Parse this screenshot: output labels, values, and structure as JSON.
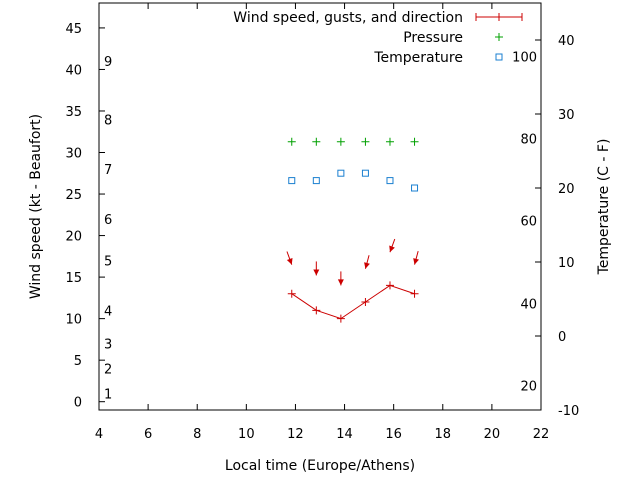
{
  "chart_data": {
    "type": "line",
    "title": "",
    "xlabel": "Local time (Europe/Athens)",
    "ylabel": "Wind speed (kt - Beaufort)",
    "y2label": "Temperature (C - F)",
    "xlim": [
      4,
      22
    ],
    "ylim": [
      -1,
      48
    ],
    "y2lim": [
      -10,
      45
    ],
    "x_ticks": [
      4,
      6,
      8,
      10,
      12,
      14,
      16,
      18,
      20,
      22
    ],
    "y_ticks": [
      0,
      5,
      10,
      15,
      20,
      25,
      30,
      35,
      40,
      45
    ],
    "y2_ticks": [
      -10,
      0,
      10,
      20,
      30,
      40
    ],
    "beaufort_labels": [
      {
        "label": "1",
        "knots": 1
      },
      {
        "label": "2",
        "knots": 4
      },
      {
        "label": "3",
        "knots": 7
      },
      {
        "label": "4",
        "knots": 11
      },
      {
        "label": "5",
        "knots": 17
      },
      {
        "label": "6",
        "knots": 22
      },
      {
        "label": "7",
        "knots": 28
      },
      {
        "label": "8",
        "knots": 34
      },
      {
        "label": "9",
        "knots": 41
      }
    ],
    "fahrenheit_labels": [
      {
        "label": "20",
        "celsius": -6.7
      },
      {
        "label": "40",
        "celsius": 4.4
      },
      {
        "label": "60",
        "celsius": 15.6
      },
      {
        "label": "80",
        "celsius": 26.7
      },
      {
        "label": "100",
        "celsius": 37.8
      }
    ],
    "legend": [
      "Wind speed, gusts, and direction",
      "Pressure",
      "Temperature"
    ],
    "series": [
      {
        "name": "Wind speed, gusts, and direction",
        "color": "#cc0000",
        "x": [
          11.85,
          12.85,
          13.85,
          14.85,
          15.85,
          16.85
        ],
        "values": [
          13,
          11,
          10,
          12,
          14,
          13
        ],
        "direction_arrows": [
          {
            "x": 11.85,
            "y": 16.5,
            "angle_deg": 160
          },
          {
            "x": 12.85,
            "y": 15.2,
            "angle_deg": 180
          },
          {
            "x": 13.85,
            "y": 14.0,
            "angle_deg": 180
          },
          {
            "x": 14.85,
            "y": 16.0,
            "angle_deg": 195
          },
          {
            "x": 15.85,
            "y": 18.0,
            "angle_deg": 200
          },
          {
            "x": 16.85,
            "y": 16.5,
            "angle_deg": 195
          }
        ]
      },
      {
        "name": "Pressure",
        "color": "#00a000",
        "x": [
          11.85,
          12.85,
          13.85,
          14.85,
          15.85,
          16.85
        ],
        "values": [
          31.3,
          31.3,
          31.3,
          31.3,
          31.3,
          31.3
        ]
      },
      {
        "name": "Temperature",
        "color": "#1a7fd0",
        "axis": "y2",
        "x": [
          11.85,
          12.85,
          13.85,
          14.85,
          15.85,
          16.85
        ],
        "values": [
          21,
          21,
          22,
          22,
          21,
          20
        ]
      }
    ]
  }
}
